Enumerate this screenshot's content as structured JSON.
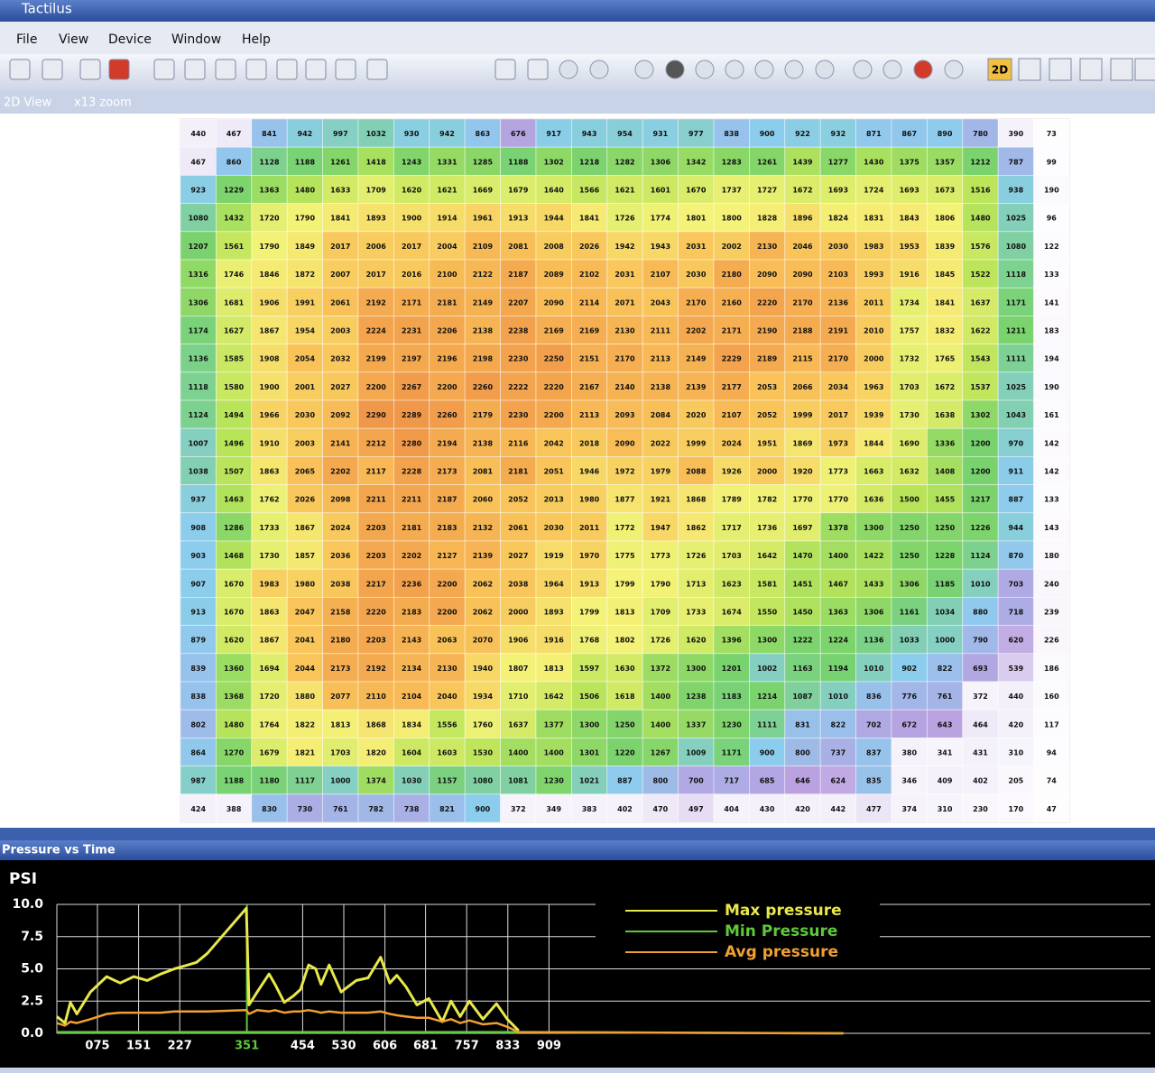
{
  "window": {
    "title": "Tactilus"
  },
  "menu": {
    "items": [
      "File",
      "View",
      "Device",
      "Window",
      "Help"
    ]
  },
  "toolbar": {
    "buttons": [
      "2D"
    ]
  },
  "view_tab": {
    "label": "2D View",
    "zoom": "x13 zoom"
  },
  "heatmap": {
    "rows": [
      [
        440,
        467,
        841,
        942,
        997,
        1032,
        930,
        942,
        863,
        676,
        917,
        943,
        954,
        931,
        977,
        838,
        900,
        922,
        932,
        871,
        867,
        890,
        780,
        390,
        73
      ],
      [
        467,
        860,
        1128,
        1188,
        1261,
        1418,
        1243,
        1331,
        1285,
        1188,
        1302,
        1218,
        1282,
        1306,
        1342,
        1283,
        1261,
        1439,
        1277,
        1430,
        1375,
        1357,
        1212,
        787,
        99
      ],
      [
        923,
        1229,
        1363,
        1480,
        1633,
        1709,
        1620,
        1621,
        1669,
        1679,
        1640,
        1566,
        1621,
        1601,
        1670,
        1737,
        1727,
        1672,
        1693,
        1724,
        1693,
        1673,
        1516,
        938,
        190
      ],
      [
        1080,
        1432,
        1720,
        1790,
        1841,
        1893,
        1900,
        1914,
        1961,
        1913,
        1944,
        1841,
        1726,
        1774,
        1801,
        1800,
        1828,
        1896,
        1824,
        1831,
        1843,
        1806,
        1480,
        1025,
        96
      ],
      [
        1207,
        1561,
        1790,
        1849,
        2017,
        2006,
        2017,
        2004,
        2109,
        2081,
        2008,
        2026,
        1942,
        1943,
        2031,
        2002,
        2130,
        2046,
        2030,
        1983,
        1953,
        1839,
        1576,
        1080,
        122
      ],
      [
        1316,
        1746,
        1846,
        1872,
        2007,
        2017,
        2016,
        2100,
        2122,
        2187,
        2089,
        2102,
        2031,
        2107,
        2030,
        2180,
        2090,
        2090,
        2103,
        1993,
        1916,
        1845,
        1522,
        1118,
        133
      ],
      [
        1306,
        1681,
        1906,
        1991,
        2061,
        2192,
        2171,
        2181,
        2149,
        2207,
        2090,
        2114,
        2071,
        2043,
        2170,
        2160,
        2220,
        2170,
        2136,
        2011,
        1734,
        1841,
        1637,
        1171,
        141
      ],
      [
        1174,
        1627,
        1867,
        1954,
        2003,
        2224,
        2231,
        2206,
        2138,
        2238,
        2169,
        2169,
        2130,
        2111,
        2202,
        2171,
        2190,
        2188,
        2191,
        2010,
        1757,
        1832,
        1622,
        1211,
        183
      ],
      [
        1136,
        1585,
        1908,
        2054,
        2032,
        2199,
        2197,
        2196,
        2198,
        2230,
        2250,
        2151,
        2170,
        2113,
        2149,
        2229,
        2189,
        2115,
        2170,
        2000,
        1732,
        1765,
        1543,
        1111,
        194
      ],
      [
        1118,
        1580,
        1900,
        2001,
        2027,
        2200,
        2267,
        2200,
        2260,
        2222,
        2220,
        2167,
        2140,
        2138,
        2139,
        2177,
        2053,
        2066,
        2034,
        1963,
        1703,
        1672,
        1537,
        1025,
        190
      ],
      [
        1124,
        1494,
        1966,
        2030,
        2092,
        2290,
        2289,
        2260,
        2179,
        2230,
        2200,
        2113,
        2093,
        2084,
        2020,
        2107,
        2052,
        1999,
        2017,
        1939,
        1730,
        1638,
        1302,
        1043,
        161
      ],
      [
        1007,
        1496,
        1910,
        2003,
        2141,
        2212,
        2280,
        2194,
        2138,
        2116,
        2042,
        2018,
        2090,
        2022,
        1999,
        2024,
        1951,
        1869,
        1973,
        1844,
        1690,
        1336,
        1200,
        970,
        142
      ],
      [
        1038,
        1507,
        1863,
        2065,
        2202,
        2117,
        2228,
        2173,
        2081,
        2181,
        2051,
        1946,
        1972,
        1979,
        2088,
        1926,
        2000,
        1920,
        1773,
        1663,
        1632,
        1408,
        1200,
        911,
        142
      ],
      [
        937,
        1463,
        1762,
        2026,
        2098,
        2211,
        2211,
        2187,
        2060,
        2052,
        2013,
        1980,
        1877,
        1921,
        1868,
        1789,
        1782,
        1770,
        1770,
        1636,
        1500,
        1455,
        1217,
        887,
        133
      ],
      [
        908,
        1286,
        1733,
        1867,
        2024,
        2203,
        2181,
        2183,
        2132,
        2061,
        2030,
        2011,
        1772,
        1947,
        1862,
        1717,
        1736,
        1697,
        1378,
        1300,
        1250,
        1250,
        1226,
        944,
        143
      ],
      [
        903,
        1468,
        1730,
        1857,
        2036,
        2203,
        2202,
        2127,
        2139,
        2027,
        1919,
        1970,
        1775,
        1773,
        1726,
        1703,
        1642,
        1470,
        1400,
        1422,
        1250,
        1228,
        1124,
        870,
        180
      ],
      [
        907,
        1670,
        1983,
        1980,
        2038,
        2217,
        2236,
        2200,
        2062,
        2038,
        1964,
        1913,
        1799,
        1790,
        1713,
        1623,
        1581,
        1451,
        1467,
        1433,
        1306,
        1185,
        1010,
        703,
        240
      ],
      [
        913,
        1670,
        1863,
        2047,
        2158,
        2220,
        2183,
        2200,
        2062,
        2000,
        1893,
        1799,
        1813,
        1709,
        1733,
        1674,
        1550,
        1450,
        1363,
        1306,
        1161,
        1034,
        880,
        718,
        239
      ],
      [
        879,
        1620,
        1867,
        2041,
        2180,
        2203,
        2143,
        2063,
        2070,
        1906,
        1916,
        1768,
        1802,
        1726,
        1620,
        1396,
        1300,
        1222,
        1224,
        1136,
        1033,
        1000,
        790,
        620,
        226
      ],
      [
        839,
        1360,
        1694,
        2044,
        2173,
        2192,
        2134,
        2130,
        1940,
        1807,
        1813,
        1597,
        1630,
        1372,
        1300,
        1201,
        1002,
        1163,
        1194,
        1010,
        902,
        822,
        693,
        539,
        186
      ],
      [
        838,
        1368,
        1720,
        1880,
        2077,
        2110,
        2104,
        2040,
        1934,
        1710,
        1642,
        1506,
        1618,
        1400,
        1238,
        1183,
        1214,
        1087,
        1010,
        836,
        776,
        761,
        372,
        440,
        160
      ],
      [
        802,
        1480,
        1764,
        1822,
        1813,
        1868,
        1834,
        1556,
        1760,
        1637,
        1377,
        1300,
        1250,
        1400,
        1337,
        1230,
        1111,
        831,
        822,
        702,
        672,
        643,
        464,
        420,
        117
      ],
      [
        864,
        1270,
        1679,
        1821,
        1703,
        1820,
        1604,
        1603,
        1530,
        1400,
        1400,
        1301,
        1220,
        1267,
        1009,
        1171,
        900,
        800,
        737,
        837,
        380,
        341,
        431,
        310,
        94
      ],
      [
        987,
        1188,
        1180,
        1117,
        1000,
        1374,
        1030,
        1157,
        1080,
        1081,
        1230,
        1021,
        887,
        800,
        700,
        717,
        685,
        646,
        624,
        835,
        346,
        409,
        402,
        205,
        74
      ],
      [
        424,
        388,
        830,
        730,
        761,
        782,
        738,
        821,
        900,
        372,
        349,
        383,
        402,
        470,
        497,
        404,
        430,
        420,
        442,
        477,
        374,
        310,
        230,
        170,
        47
      ]
    ]
  },
  "chart_data": {
    "type": "line",
    "title": "Pressure vs Time",
    "y_label": "PSI",
    "x": [
      0,
      15,
      25,
      37,
      62,
      92,
      117,
      142,
      167,
      192,
      217,
      242,
      258,
      278,
      350,
      355,
      370,
      392,
      403,
      420,
      437,
      450,
      465,
      478,
      488,
      503,
      525,
      553,
      575,
      598,
      615,
      628,
      645,
      665,
      687,
      712,
      728,
      745,
      762,
      787,
      812,
      832,
      853,
      1453
    ],
    "series": [
      {
        "name": "Max pressure",
        "color": "#e8e84a",
        "values": [
          1.3,
          0.8,
          2.4,
          1.5,
          3.2,
          4.4,
          3.9,
          4.4,
          4.1,
          4.6,
          5.0,
          5.3,
          5.5,
          6.2,
          9.7,
          2.2,
          3.2,
          4.6,
          3.8,
          2.4,
          2.9,
          3.4,
          5.3,
          5.0,
          3.8,
          5.3,
          3.2,
          4.1,
          4.3,
          5.9,
          3.9,
          4.5,
          3.6,
          2.2,
          2.7,
          0.9,
          2.5,
          1.3,
          2.5,
          1.1,
          2.3,
          1.1,
          0.2,
          null
        ]
      },
      {
        "name": "Min Pressure",
        "color": "#5fc83a",
        "values": [
          0.1,
          0.1,
          0.1,
          0.1,
          0.1,
          0.1,
          0.1,
          0.1,
          0.1,
          0.1,
          0.1,
          0.1,
          0.1,
          0.1,
          0.1,
          0.1,
          0.1,
          0.1,
          0.1,
          0.1,
          0.1,
          0.1,
          0.1,
          0.1,
          0.1,
          0.1,
          0.1,
          0.1,
          0.1,
          0.1,
          0.1,
          0.1,
          0.1,
          0.1,
          0.1,
          0.1,
          0.1,
          0.1,
          0.1,
          0.1,
          0.1,
          0.1,
          0.1,
          0.0
        ]
      },
      {
        "name": "Avg pressure",
        "color": "#f0a030",
        "values": [
          0.8,
          0.6,
          0.9,
          0.8,
          1.1,
          1.5,
          1.6,
          1.6,
          1.6,
          1.6,
          1.7,
          1.7,
          1.7,
          1.7,
          1.8,
          1.5,
          1.8,
          1.7,
          1.8,
          1.6,
          1.7,
          1.7,
          1.8,
          1.7,
          1.6,
          1.7,
          1.6,
          1.6,
          1.6,
          1.7,
          1.5,
          1.4,
          1.3,
          1.2,
          1.2,
          0.9,
          1.1,
          0.8,
          1.0,
          0.7,
          0.8,
          0.5,
          0.1,
          0.0
        ]
      }
    ],
    "xlim": [
      0,
      2020
    ],
    "xticks": [
      {
        "value": 75,
        "label": "075"
      },
      151,
      227,
      {
        "value": 351,
        "label": "351",
        "highlight": true
      },
      454,
      530,
      606,
      681,
      757,
      833,
      909
    ],
    "ylim": [
      0,
      10
    ],
    "yticks": [
      {
        "value": 0,
        "label": "0.0"
      },
      {
        "value": 2.5,
        "label": "2.5"
      },
      {
        "value": 5,
        "label": "5.0"
      },
      {
        "value": 7.5,
        "label": "7.5"
      },
      {
        "value": 10,
        "label": "10.0"
      }
    ],
    "grid": true
  }
}
